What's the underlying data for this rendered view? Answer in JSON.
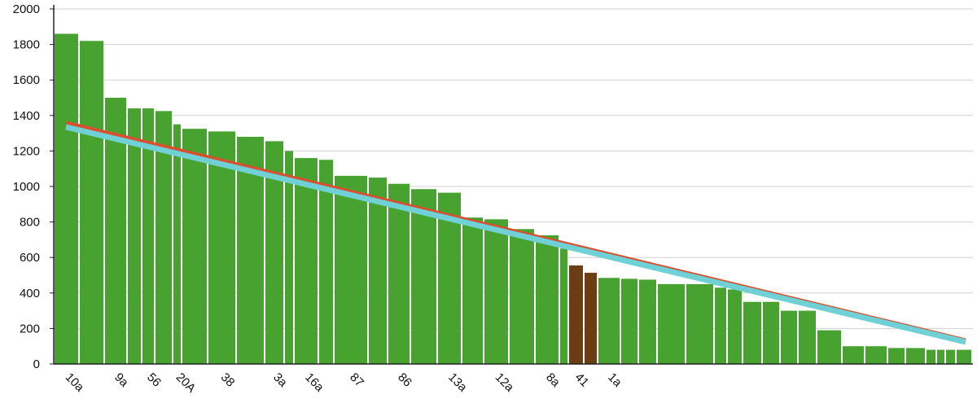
{
  "chart_data": {
    "type": "variable-width-bar",
    "categories": [
      "10a",
      null,
      "9a",
      null,
      "56",
      null,
      "20A",
      null,
      "38",
      null,
      "3a",
      null,
      "16a",
      null,
      "87",
      null,
      "86",
      null,
      "13a",
      null,
      "12a",
      null,
      "8a",
      null,
      "41",
      null,
      "1a",
      null,
      null,
      null,
      null,
      null,
      null,
      null,
      null,
      null,
      null,
      null,
      null,
      null,
      null,
      null,
      null,
      null,
      null,
      null
    ],
    "values": [
      1860,
      1820,
      1500,
      1440,
      1440,
      1425,
      1350,
      1325,
      1310,
      1280,
      1255,
      1200,
      1160,
      1150,
      1060,
      1050,
      1015,
      985,
      965,
      825,
      815,
      760,
      725,
      650,
      555,
      514,
      485,
      480,
      475,
      450,
      450,
      430,
      420,
      350,
      350,
      300,
      300,
      190,
      100,
      100,
      90,
      90,
      80,
      80,
      80,
      80
    ],
    "widths": [
      31,
      31,
      28,
      18,
      16,
      22,
      11,
      32,
      35,
      35,
      24,
      12,
      30,
      19,
      42,
      24,
      28,
      33,
      30,
      27,
      31,
      32,
      30,
      11,
      19,
      17,
      28,
      22,
      23,
      35,
      35,
      16,
      19,
      24,
      22,
      22,
      23,
      31,
      28,
      28,
      22,
      25,
      13,
      11,
      13,
      20
    ],
    "colors": [
      "#47a22f",
      "#47a22f",
      "#47a22f",
      "#47a22f",
      "#47a22f",
      "#47a22f",
      "#47a22f",
      "#47a22f",
      "#47a22f",
      "#47a22f",
      "#47a22f",
      "#47a22f",
      "#47a22f",
      "#47a22f",
      "#47a22f",
      "#47a22f",
      "#47a22f",
      "#47a22f",
      "#47a22f",
      "#47a22f",
      "#47a22f",
      "#47a22f",
      "#47a22f",
      "#47a22f",
      "#6b3d15",
      "#6b3d15",
      "#47a22f",
      "#47a22f",
      "#47a22f",
      "#47a22f",
      "#47a22f",
      "#47a22f",
      "#47a22f",
      "#47a22f",
      "#47a22f",
      "#47a22f",
      "#47a22f",
      "#47a22f",
      "#47a22f",
      "#47a22f",
      "#47a22f",
      "#47a22f",
      "#47a22f",
      "#47a22f",
      "#47a22f",
      "#47a22f"
    ],
    "lines": [
      {
        "color": "#d9502e",
        "x": [
          14,
          1119
        ],
        "values": [
          1358,
          133
        ]
      },
      {
        "color": "#6fd0d6",
        "x": [
          14,
          1119
        ],
        "values": [
          1335,
          124
        ]
      }
    ],
    "xlim": [
      0,
      1128
    ],
    "ylim": [
      0,
      2000
    ],
    "yticks": [
      0,
      200,
      400,
      600,
      800,
      1000,
      1200,
      1400,
      1600,
      1800,
      2000
    ],
    "grid": true
  }
}
